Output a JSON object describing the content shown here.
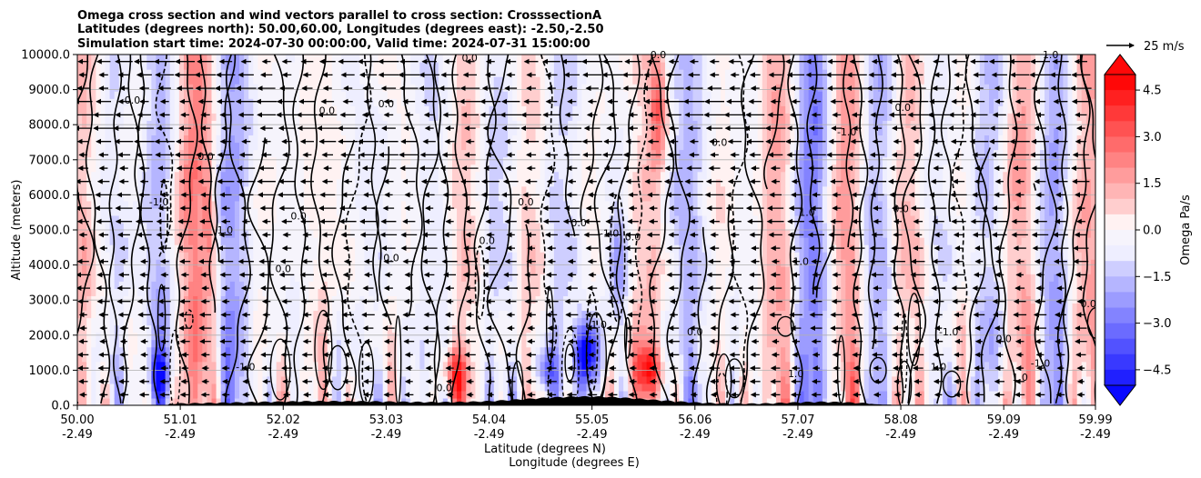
{
  "chart_data": {
    "type": "heatmap",
    "title_lines": [
      "Omega cross section and wind vectors parallel to cross section: CrosssectionA",
      "Latitudes (degrees north): 50.00,60.00, Longitudes (degrees east): -2.50,-2.50",
      "Simulation start time: 2024-07-30 00:00:00, Valid time: 2024-07-31 15:00:00"
    ],
    "ylabel": "Altitude (meters)",
    "xlabel_lines": [
      "Latitude (degrees N)",
      "Longitude (degrees E)"
    ],
    "x_ticks": [
      {
        "lat": "50.00",
        "lon": "-2.49"
      },
      {
        "lat": "51.01",
        "lon": "-2.49"
      },
      {
        "lat": "52.02",
        "lon": "-2.49"
      },
      {
        "lat": "53.03",
        "lon": "-2.49"
      },
      {
        "lat": "54.04",
        "lon": "-2.49"
      },
      {
        "lat": "55.05",
        "lon": "-2.49"
      },
      {
        "lat": "56.06",
        "lon": "-2.49"
      },
      {
        "lat": "57.07",
        "lon": "-2.49"
      },
      {
        "lat": "58.08",
        "lon": "-2.49"
      },
      {
        "lat": "59.09",
        "lon": "-2.49"
      },
      {
        "lat": "59.99",
        "lon": "-2.49"
      }
    ],
    "xlim": [
      50.0,
      59.99
    ],
    "y_ticks": [
      "0.0",
      "1000.0",
      "2000.0",
      "3000.0",
      "4000.0",
      "5000.0",
      "6000.0",
      "7000.0",
      "8000.0",
      "9000.0",
      "10000.0"
    ],
    "ylim": [
      0,
      10000
    ],
    "grid": "horizontal",
    "colorbar": {
      "label": "Omega Pa/s",
      "ticks": [
        "4.5",
        "3.0",
        "1.5",
        "0.0",
        "−1.5",
        "−3.0",
        "−4.5"
      ],
      "range": [
        -5.0,
        5.0
      ],
      "colormap": "bwr",
      "extend": "both"
    },
    "quiver_key": {
      "label": "25 m/s",
      "value": 25
    },
    "contour_levels": [
      -1.0,
      0.0,
      1.0
    ],
    "contour_labels": [
      {
        "text": "0.0",
        "lat": 50.54,
        "alt": 8600
      },
      {
        "text": "0.0",
        "lat": 51.26,
        "alt": 7000
      },
      {
        "text": "-1.0",
        "lat": 50.8,
        "alt": 5700
      },
      {
        "text": "1.0",
        "lat": 51.45,
        "alt": 4900
      },
      {
        "text": "0.0",
        "lat": 52.02,
        "alt": 3800
      },
      {
        "text": "0.0",
        "lat": 52.17,
        "alt": 5300
      },
      {
        "text": "0.0",
        "lat": 52.45,
        "alt": 8300
      },
      {
        "text": "0.0",
        "lat": 53.03,
        "alt": 8500
      },
      {
        "text": "0.0",
        "lat": 53.08,
        "alt": 4100
      },
      {
        "text": "0.0",
        "lat": 53.85,
        "alt": 9800
      },
      {
        "text": "0.0",
        "lat": 54.02,
        "alt": 4600
      },
      {
        "text": "0.0",
        "lat": 54.4,
        "alt": 5700
      },
      {
        "text": "0.0",
        "lat": 54.92,
        "alt": 5100
      },
      {
        "text": "-1.0",
        "lat": 55.22,
        "alt": 4800
      },
      {
        "text": "0.0",
        "lat": 55.45,
        "alt": 4700
      },
      {
        "text": "-1.0",
        "lat": 55.1,
        "alt": 2200
      },
      {
        "text": "0.0",
        "lat": 56.06,
        "alt": 2000
      },
      {
        "text": "0.0",
        "lat": 55.7,
        "alt": 9900
      },
      {
        "text": "0.0",
        "lat": 56.3,
        "alt": 7400
      },
      {
        "text": "1.0",
        "lat": 57.16,
        "alt": 5400
      },
      {
        "text": "-1.0",
        "lat": 57.55,
        "alt": 7700
      },
      {
        "text": "1.0",
        "lat": 57.1,
        "alt": 4000
      },
      {
        "text": "0.0",
        "lat": 58.08,
        "alt": 5500
      },
      {
        "text": "0.0",
        "lat": 58.1,
        "alt": 8400
      },
      {
        "text": "-1.0",
        "lat": 58.55,
        "alt": 2000
      },
      {
        "text": "0.0",
        "lat": 59.09,
        "alt": 1800
      },
      {
        "text": "-1.0",
        "lat": 59.45,
        "alt": 1100
      },
      {
        "text": "1.0",
        "lat": 59.25,
        "alt": 700
      },
      {
        "text": "1.0",
        "lat": 59.55,
        "alt": 9900
      },
      {
        "text": "0.0",
        "lat": 59.92,
        "alt": 2800
      },
      {
        "text": "-1.0",
        "lat": 51.65,
        "alt": 1000
      },
      {
        "text": "0.0",
        "lat": 53.6,
        "alt": 400
      },
      {
        "text": "1.0",
        "lat": 57.05,
        "alt": 800
      },
      {
        "text": "1.0",
        "lat": 58.45,
        "alt": 1000
      }
    ]
  }
}
